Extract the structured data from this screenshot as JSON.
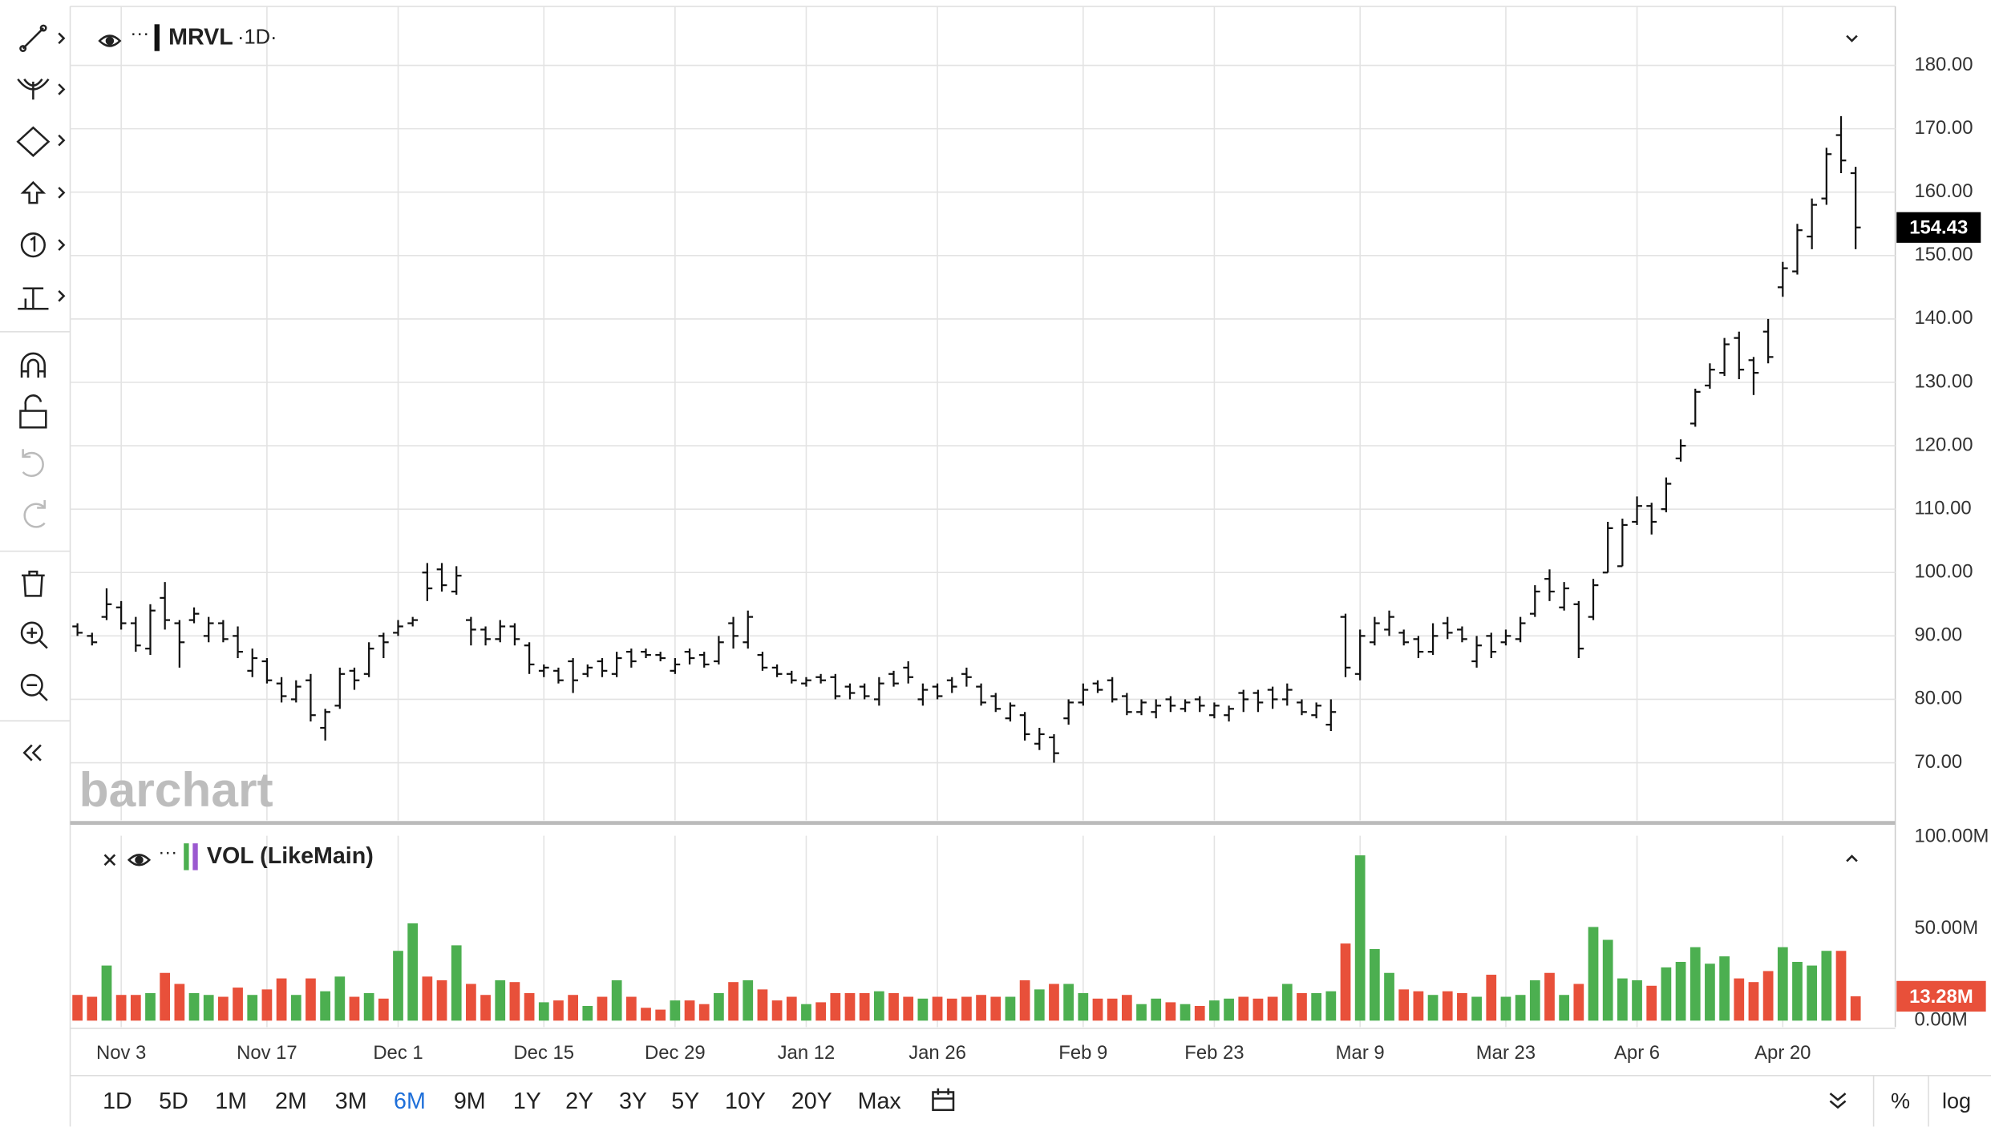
{
  "chart_data": [
    {
      "type": "ohlc",
      "title": "MRVL",
      "subtitle": "·1D·",
      "color": "#111111",
      "up_color": "#4caf50",
      "down_color": "#e8503a",
      "grid": true,
      "categories": [
        null,
        null,
        null,
        "Nov 3",
        null,
        null,
        null,
        null,
        null,
        null,
        null,
        null,
        null,
        "Nov 17",
        null,
        null,
        null,
        null,
        null,
        null,
        null,
        null,
        "Dec 1",
        null,
        null,
        null,
        null,
        null,
        null,
        null,
        null,
        null,
        "Dec 15",
        null,
        null,
        null,
        null,
        null,
        null,
        null,
        null,
        "Dec 29",
        null,
        null,
        null,
        null,
        null,
        null,
        null,
        null,
        "Jan 12",
        null,
        null,
        null,
        null,
        null,
        null,
        null,
        null,
        "Jan 26",
        null,
        null,
        null,
        null,
        null,
        null,
        null,
        null,
        null,
        "Feb 9",
        null,
        null,
        null,
        null,
        null,
        null,
        null,
        null,
        "Feb 23",
        null,
        null,
        null,
        null,
        null,
        null,
        null,
        null,
        null,
        "Mar 9",
        null,
        null,
        null,
        null,
        null,
        null,
        null,
        null,
        null,
        "Mar 23",
        null,
        null,
        null,
        null,
        null,
        null,
        null,
        null,
        "Apr 6",
        null,
        null,
        null,
        null,
        null,
        null,
        null,
        null,
        null,
        "Apr 20",
        null,
        null,
        null,
        null,
        null
      ],
      "ohlc": [
        [
          91.5,
          92,
          90,
          90.5
        ],
        [
          90,
          90.5,
          88.5,
          89
        ],
        [
          93,
          97.5,
          92.5,
          95
        ],
        [
          94.5,
          95.5,
          91,
          92
        ],
        [
          92,
          93,
          87.5,
          88.5
        ],
        [
          88,
          95,
          87,
          94
        ],
        [
          96,
          98.5,
          91,
          92.5
        ],
        [
          92,
          92.5,
          85,
          89
        ],
        [
          92.5,
          94.5,
          92,
          93.5
        ],
        [
          90,
          93,
          89,
          92
        ],
        [
          92,
          92.5,
          89,
          89.5
        ],
        [
          90,
          91.5,
          86.5,
          87.5
        ],
        [
          84.5,
          88,
          83.5,
          86.5
        ],
        [
          86,
          86.5,
          82.5,
          83
        ],
        [
          82.5,
          83.5,
          79.5,
          80.5
        ],
        [
          80,
          83,
          79.5,
          82
        ],
        [
          83,
          84,
          76.5,
          77.5
        ],
        [
          75.5,
          78.5,
          73.5,
          78
        ],
        [
          79,
          85,
          78.5,
          84
        ],
        [
          84.5,
          85,
          81.5,
          83
        ],
        [
          84,
          89,
          83.5,
          88
        ],
        [
          90,
          90.5,
          86.5,
          89
        ],
        [
          90.5,
          92.5,
          90,
          91.5
        ],
        [
          92,
          93,
          91.5,
          92.5
        ],
        [
          100,
          101.5,
          95.5,
          97.5
        ],
        [
          100.5,
          101.5,
          97,
          98
        ],
        [
          97,
          101,
          96.5,
          99.5
        ],
        [
          92.5,
          93,
          88.5,
          91
        ],
        [
          91,
          91.5,
          88.5,
          89.5
        ],
        [
          89.5,
          92.5,
          89,
          91.5
        ],
        [
          91.5,
          92,
          88.5,
          89.5
        ],
        [
          88.5,
          89,
          84,
          85.5
        ],
        [
          84.5,
          85.5,
          83.5,
          85
        ],
        [
          84.5,
          85,
          82.5,
          83
        ],
        [
          86,
          86.5,
          81,
          83
        ],
        [
          84,
          85.5,
          83.5,
          85
        ],
        [
          86,
          86.5,
          83.5,
          84.5
        ],
        [
          84,
          87.5,
          83.5,
          86.5
        ],
        [
          87.5,
          88,
          85,
          86
        ],
        [
          87.5,
          88,
          86.5,
          87
        ],
        [
          87,
          87.5,
          86,
          86.5
        ],
        [
          84.5,
          86.5,
          84,
          85.5
        ],
        [
          87.5,
          88,
          85.5,
          86.5
        ],
        [
          87,
          87.5,
          85,
          85.5
        ],
        [
          86,
          90,
          85.5,
          89
        ],
        [
          92,
          93,
          88,
          90
        ],
        [
          89,
          94,
          88,
          93
        ],
        [
          87,
          87.5,
          84.5,
          85
        ],
        [
          85,
          85.5,
          83.5,
          84
        ],
        [
          84,
          84.5,
          82.5,
          83
        ],
        [
          82.5,
          83.5,
          82,
          83
        ],
        [
          83.5,
          84,
          82.5,
          83
        ],
        [
          83.5,
          84,
          80,
          80.5
        ],
        [
          82,
          82.5,
          80,
          81
        ],
        [
          82,
          82.5,
          80,
          80.5
        ],
        [
          80,
          83.5,
          79,
          82.5
        ],
        [
          84,
          84.5,
          82,
          82.5
        ],
        [
          85,
          86,
          82.5,
          83.5
        ],
        [
          80,
          82.5,
          79,
          81.5
        ],
        [
          82,
          82.5,
          80,
          80.5
        ],
        [
          83,
          83.5,
          81,
          82
        ],
        [
          84,
          85,
          82,
          83.5
        ],
        [
          82,
          82.5,
          79,
          79.5
        ],
        [
          80.5,
          81,
          78,
          78.5
        ],
        [
          77,
          79.5,
          76.5,
          79
        ],
        [
          77.5,
          78,
          73.5,
          74.5
        ],
        [
          73,
          75.5,
          72,
          74.5
        ],
        [
          74,
          74.5,
          70,
          71.5
        ],
        [
          77,
          80,
          76,
          79.5
        ],
        [
          79.5,
          82.5,
          79,
          81.5
        ],
        [
          82.5,
          83,
          81,
          81.5
        ],
        [
          83,
          83.5,
          79.5,
          80
        ],
        [
          80.5,
          81,
          77.5,
          78
        ],
        [
          78,
          80,
          77.5,
          79.5
        ],
        [
          78,
          80,
          77,
          79
        ],
        [
          80,
          80.5,
          78,
          79
        ],
        [
          78.5,
          80,
          78,
          79.5
        ],
        [
          80,
          80.5,
          78,
          79
        ],
        [
          77.5,
          79.5,
          77,
          79
        ],
        [
          77.5,
          79,
          76.5,
          78.5
        ],
        [
          81,
          81.5,
          78,
          80
        ],
        [
          81,
          81.5,
          78,
          79.5
        ],
        [
          81.5,
          82,
          78.5,
          80
        ],
        [
          80,
          82.5,
          79,
          81.5
        ],
        [
          79.5,
          80,
          77.5,
          78
        ],
        [
          77.5,
          79.5,
          77,
          79
        ],
        [
          76,
          80,
          75,
          78
        ],
        [
          93,
          93.5,
          83.5,
          85
        ],
        [
          84,
          91,
          83,
          90
        ],
        [
          89,
          93,
          88.5,
          92
        ],
        [
          91,
          94,
          90,
          93
        ],
        [
          90.5,
          91,
          88.5,
          89
        ],
        [
          89.5,
          90,
          86.5,
          87.5
        ],
        [
          87.5,
          92,
          87,
          90
        ],
        [
          92,
          93,
          89.5,
          90.5
        ],
        [
          91,
          91.5,
          89,
          89.5
        ],
        [
          86,
          90,
          85,
          88.5
        ],
        [
          90,
          90.5,
          86.5,
          87.5
        ],
        [
          89,
          91,
          88.5,
          90
        ],
        [
          89.5,
          93,
          89,
          92
        ],
        [
          93.5,
          98,
          93,
          97
        ],
        [
          99,
          100.5,
          95.5,
          97
        ],
        [
          94.5,
          98.5,
          94,
          97.5
        ],
        [
          95,
          95.5,
          86.5,
          88
        ],
        [
          93,
          99,
          92.5,
          98
        ],
        [
          100,
          108,
          100,
          107
        ],
        [
          101,
          108.5,
          101,
          107.5
        ],
        [
          108,
          112,
          107.5,
          110.5
        ],
        [
          110.5,
          111,
          106,
          108
        ],
        [
          110,
          115,
          109.5,
          114
        ],
        [
          118,
          121,
          117.5,
          120
        ],
        [
          123.5,
          129,
          123,
          128.5
        ],
        [
          129.5,
          133,
          129,
          132
        ],
        [
          131.5,
          137,
          131,
          136
        ],
        [
          137,
          138,
          130.5,
          132
        ],
        [
          133.5,
          134,
          128,
          131.5
        ],
        [
          138,
          140,
          133,
          134
        ],
        [
          145,
          149,
          143.5,
          148
        ],
        [
          147.5,
          155,
          147,
          154
        ],
        [
          153,
          159,
          151,
          158
        ],
        [
          159,
          167,
          158,
          166
        ],
        [
          169,
          172,
          163,
          165
        ],
        [
          163,
          164,
          151,
          154.43
        ]
      ],
      "ylim": [
        60.5,
        189.3
      ],
      "yticks": [
        {
          "value": 70,
          "label": "70.00"
        },
        {
          "value": 80,
          "label": "80.00"
        },
        {
          "value": 90,
          "label": "90.00"
        },
        {
          "value": 100,
          "label": "100.00"
        },
        {
          "value": 110,
          "label": "110.00"
        },
        {
          "value": 120,
          "label": "120.00"
        },
        {
          "value": 130,
          "label": "130.00"
        },
        {
          "value": 140,
          "label": "140.00"
        },
        {
          "value": 150,
          "label": "150.00"
        },
        {
          "value": 160,
          "label": "160.00"
        },
        {
          "value": 170,
          "label": "170.00"
        },
        {
          "value": 180,
          "label": "180.00"
        }
      ]
    },
    {
      "type": "bar",
      "title": "VOL (LikeMain)",
      "values": [
        14,
        13,
        30,
        14,
        14,
        15,
        26,
        20,
        15,
        14,
        13,
        18,
        14,
        17,
        23,
        14,
        23,
        16,
        24,
        13,
        15,
        12,
        38,
        53,
        24,
        22,
        41,
        20,
        14,
        22,
        21,
        15,
        10,
        11,
        14,
        8,
        13,
        22,
        13,
        7,
        6,
        11,
        11,
        9,
        15,
        21,
        22,
        17,
        11,
        13,
        9,
        10,
        15,
        15,
        15,
        16,
        15,
        13,
        12,
        13,
        12,
        13,
        14,
        13,
        13,
        22,
        17,
        20,
        20,
        15,
        12,
        12,
        14,
        9,
        12,
        10,
        9,
        8,
        11,
        12,
        13,
        12,
        13,
        20,
        15,
        15,
        16,
        42,
        90,
        39,
        26,
        17,
        16,
        14,
        16,
        15,
        13,
        25,
        13,
        14,
        22,
        26,
        14,
        20,
        51,
        44,
        23,
        22,
        19,
        29,
        32,
        40,
        31,
        35,
        23,
        21,
        27,
        40,
        32,
        30,
        38,
        38,
        13.28
      ],
      "value_labels": [
        null,
        null,
        null,
        null,
        null,
        null,
        null,
        null,
        null,
        null,
        null,
        null,
        null,
        null,
        null,
        null,
        null,
        null,
        null,
        null,
        null,
        null,
        null,
        null,
        null,
        null,
        null,
        null,
        null,
        null,
        null,
        null,
        null,
        null,
        null,
        null,
        null,
        null,
        null,
        null,
        null,
        null,
        null,
        null,
        null,
        null,
        null,
        null,
        null,
        null,
        null,
        null,
        null,
        null,
        null,
        null,
        null,
        null,
        null,
        null,
        null,
        null,
        null,
        null,
        null,
        null,
        null,
        null,
        null,
        null,
        null,
        null,
        null,
        null,
        null,
        null,
        null,
        null,
        null,
        null,
        null,
        null,
        null,
        null,
        null,
        null,
        null,
        null,
        null,
        null,
        null,
        null,
        null,
        null,
        null,
        null,
        null,
        null,
        null,
        null,
        null,
        null,
        null,
        null,
        null,
        null,
        null,
        null,
        null,
        null,
        null,
        null,
        null,
        null,
        null,
        null,
        null,
        null,
        null,
        null,
        null,
        null,
        "13.28M"
      ],
      "ylim": [
        -3.5,
        100.7
      ],
      "yticks": [
        {
          "value": 0,
          "label": "0.00M"
        },
        {
          "value": 50,
          "label": "50.00M"
        },
        {
          "value": 100,
          "label": "100.00M"
        }
      ]
    }
  ],
  "ui": {
    "watermark": "barchart",
    "ranges": [
      "1D",
      "5D",
      "1M",
      "2M",
      "3M",
      "6M",
      "9M",
      "1Y",
      "2Y",
      "3Y",
      "5Y",
      "10Y",
      "20Y",
      "Max"
    ],
    "active_range": "6M",
    "active_color": "#1e6fd9",
    "percent": "%",
    "log": "log"
  }
}
